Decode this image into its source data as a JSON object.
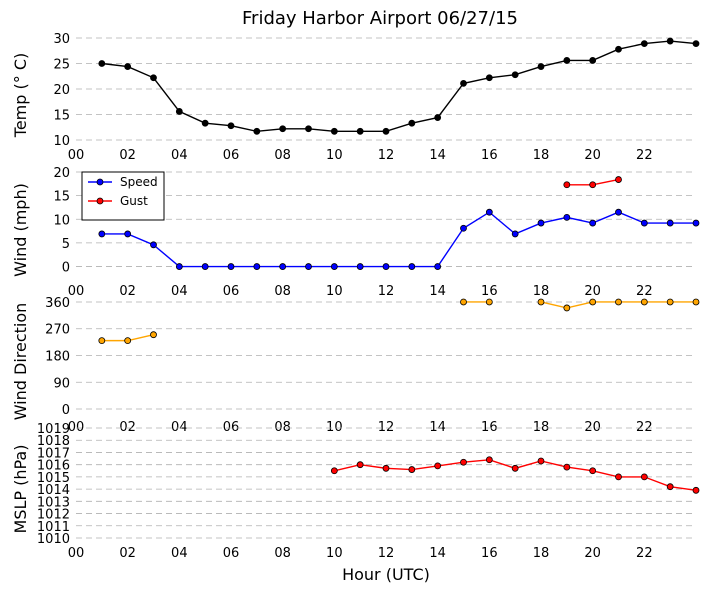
{
  "chart_data": {
    "type": "line",
    "title": "Friday Harbor Airport 06/27/15",
    "xlabel": "Hour (UTC)",
    "xlim": [
      0,
      24
    ],
    "xticks": [
      0,
      2,
      4,
      6,
      8,
      10,
      12,
      14,
      16,
      18,
      20,
      22
    ],
    "xtick_labels": [
      "00",
      "02",
      "04",
      "06",
      "08",
      "10",
      "12",
      "14",
      "16",
      "18",
      "20",
      "22"
    ],
    "panels": [
      {
        "id": "temp",
        "ylabel": "Temp ($^\\circ$C)",
        "ylabel_display": "Temp (° C)",
        "ylim": [
          10,
          30
        ],
        "yticks": [
          10,
          15,
          20,
          25,
          30
        ],
        "grid": true,
        "legend": null,
        "series": [
          {
            "color": "#000000",
            "x": [
              1,
              2,
              3,
              4,
              5,
              6,
              7,
              8,
              9,
              10,
              11,
              12,
              13,
              14,
              15,
              16,
              17,
              18,
              19,
              20,
              21,
              22,
              23,
              24
            ],
            "y": [
              25,
              24.4,
              22.2,
              15.6,
              13.3,
              12.8,
              11.7,
              12.2,
              12.2,
              11.7,
              11.7,
              11.7,
              13.3,
              14.4,
              21.1,
              22.2,
              22.8,
              24.4,
              25.6,
              25.6,
              27.8,
              28.9,
              29.4,
              28.9
            ]
          }
        ]
      },
      {
        "id": "wind",
        "ylabel": "Wind (mph)",
        "ylim": [
          -2,
          20
        ],
        "yticks": [
          0,
          5,
          10,
          15,
          20
        ],
        "grid": true,
        "legend": "upper-left",
        "series": [
          {
            "name": "Speed",
            "color": "#0000ff",
            "x": [
              1,
              2,
              3,
              4,
              5,
              6,
              7,
              8,
              9,
              10,
              11,
              12,
              13,
              14,
              15,
              16,
              17,
              18,
              19,
              20,
              21,
              22,
              23,
              24
            ],
            "y": [
              6.9,
              6.9,
              4.6,
              0,
              0,
              0,
              0,
              0,
              0,
              0,
              0,
              0,
              0,
              0,
              8.1,
              11.5,
              6.9,
              9.2,
              10.4,
              9.2,
              11.5,
              9.2,
              9.2,
              9.2
            ]
          },
          {
            "name": "Gust",
            "color": "#ff0000",
            "x": [
              19,
              20,
              21
            ],
            "y": [
              17.3,
              17.3,
              18.4
            ]
          }
        ]
      },
      {
        "id": "dir",
        "ylabel": "Wind Direction",
        "ylim": [
          -10,
          370
        ],
        "yticks": [
          0,
          90,
          180,
          270,
          360
        ],
        "grid": true,
        "legend": null,
        "series": [
          {
            "color": "#ffa500",
            "segments": [
              {
                "x": [
                  1,
                  2,
                  3
                ],
                "y": [
                  230,
                  230,
                  250
                ]
              },
              {
                "x": [
                  15,
                  16
                ],
                "y": [
                  360,
                  360
                ]
              },
              {
                "x": [
                  18,
                  19,
                  20,
                  21,
                  22,
                  23,
                  24
                ],
                "y": [
                  360,
                  340,
                  360,
                  360,
                  360,
                  360,
                  360
                ]
              }
            ]
          }
        ]
      },
      {
        "id": "mslp",
        "ylabel": "MSLP (hPa)",
        "ylim": [
          1010,
          1019
        ],
        "yticks": [
          1010,
          1011,
          1012,
          1013,
          1014,
          1015,
          1016,
          1017,
          1018,
          1019
        ],
        "grid": true,
        "legend": null,
        "series": [
          {
            "color": "#ff0000",
            "x": [
              10,
              11,
              12,
              13,
              14,
              15,
              16,
              17,
              18,
              19,
              20,
              21,
              22,
              23,
              24
            ],
            "y": [
              1015.5,
              1016,
              1015.7,
              1015.6,
              1015.9,
              1016.2,
              1016.4,
              1015.7,
              1016.3,
              1015.8,
              1015.5,
              1015,
              1015,
              1014.2,
              1013.9
            ]
          }
        ]
      }
    ]
  }
}
